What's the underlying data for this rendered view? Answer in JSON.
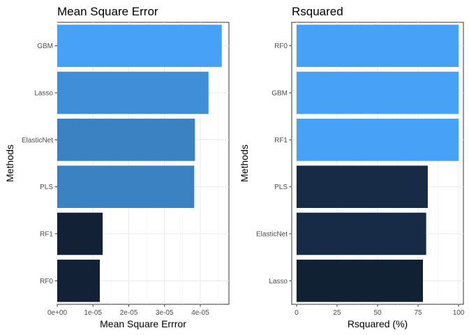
{
  "chart_data": [
    {
      "type": "bar",
      "orientation": "horizontal",
      "title": "Mean Square Error",
      "xlabel": "Mean Square Errror",
      "ylabel": "Methods",
      "categories": [
        "GBM",
        "Lasso",
        "ElasticNet",
        "PLS",
        "RF1",
        "RF0"
      ],
      "values": [
        4.6e-05,
        4.23e-05,
        3.85e-05,
        3.83e-05,
        1.27e-05,
        1.19e-05
      ],
      "colors": [
        "#47A2F7",
        "#418ED8",
        "#3B82C3",
        "#3B82C3",
        "#132136",
        "#132136"
      ],
      "xlim": [
        0,
        4.8e-05
      ],
      "x_ticks": [
        0,
        1e-05,
        2e-05,
        3e-05,
        4e-05
      ],
      "x_tick_labels": [
        "0e+00",
        "1e-05",
        "2e-05",
        "3e-05",
        "4e-05"
      ],
      "grid": true,
      "legend": "none"
    },
    {
      "type": "bar",
      "orientation": "horizontal",
      "title": "Rsquared",
      "xlabel": "Rsquared (%)",
      "ylabel": "Methods",
      "categories": [
        "RF0",
        "GBM",
        "RF1",
        "PLS",
        "ElasticNet",
        "Lasso"
      ],
      "values": [
        100,
        100,
        100,
        81,
        80,
        78
      ],
      "colors": [
        "#47A2F7",
        "#47A2F7",
        "#47A2F7",
        "#172B47",
        "#172B47",
        "#112134"
      ],
      "xlim": [
        -3,
        103
      ],
      "x_ticks": [
        0,
        25,
        50,
        75,
        100
      ],
      "x_tick_labels": [
        "0",
        "25",
        "50",
        "75",
        "100"
      ],
      "grid": true,
      "legend": "none"
    }
  ]
}
